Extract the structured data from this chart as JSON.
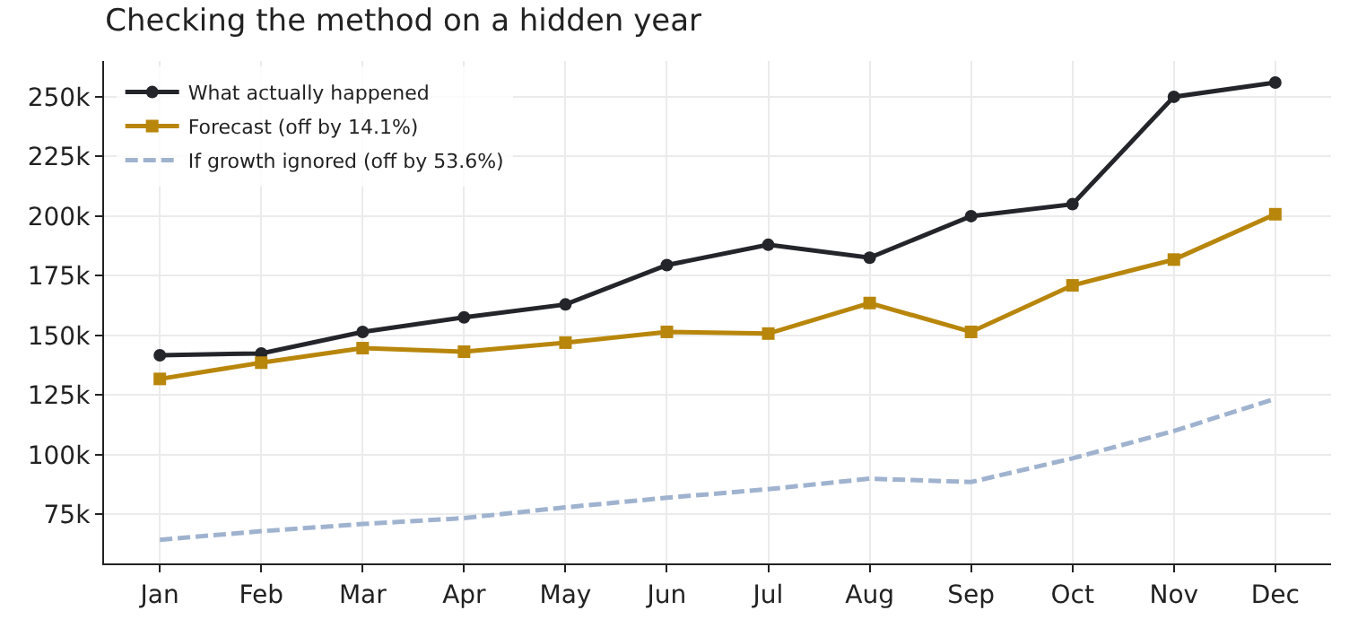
{
  "chart_data": {
    "type": "line",
    "title": "Checking the method on a hidden year",
    "categories": [
      "Jan",
      "Feb",
      "Mar",
      "Apr",
      "May",
      "Jun",
      "Jul",
      "Aug",
      "Sep",
      "Oct",
      "Nov",
      "Dec"
    ],
    "series": [
      {
        "name": "What actually happened",
        "color": "#23252a",
        "marker": "circle",
        "line_style": "solid",
        "values": [
          141700,
          142500,
          151500,
          157600,
          163000,
          179500,
          188000,
          182600,
          200000,
          205000,
          250000,
          256000
        ]
      },
      {
        "name": "Forecast (off by 14.1%)",
        "color": "#b8860b",
        "marker": "square",
        "line_style": "solid",
        "values": [
          131800,
          138600,
          144700,
          143200,
          147000,
          151500,
          150800,
          163600,
          151500,
          171000,
          181800,
          200800
        ]
      },
      {
        "name": "If growth ignored (off by 53.6%)",
        "color": "#9fb3cf",
        "marker": "none",
        "line_style": "dashed",
        "values": [
          64400,
          68000,
          71000,
          73500,
          78000,
          82000,
          85600,
          90000,
          88600,
          98500,
          110000,
          123500
        ]
      }
    ],
    "ylim": [
      54500,
      265000
    ],
    "yticks": [
      {
        "value": 75000,
        "label": "75k"
      },
      {
        "value": 100000,
        "label": "100k"
      },
      {
        "value": 125000,
        "label": "125k"
      },
      {
        "value": 150000,
        "label": "150k"
      },
      {
        "value": 175000,
        "label": "175k"
      },
      {
        "value": 200000,
        "label": "200k"
      },
      {
        "value": 225000,
        "label": "225k"
      },
      {
        "value": 250000,
        "label": "250k"
      }
    ],
    "grid": true,
    "legend": "top left"
  }
}
